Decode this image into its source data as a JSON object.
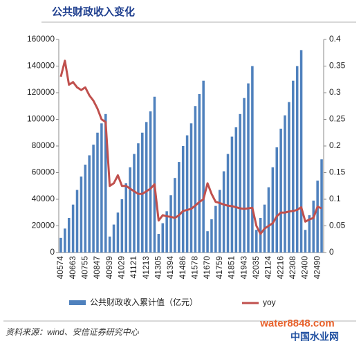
{
  "chart_data": {
    "type": "bar_line",
    "title": "公共财政收入变化",
    "source": "资料来源：wind、安信证券研究中心",
    "watermark": "water8848.com",
    "watermark_sub": "中国水业网",
    "categories": [
      40574,
      null,
      null,
      40663,
      null,
      null,
      40755,
      null,
      null,
      40847,
      null,
      null,
      40939,
      null,
      null,
      41029,
      null,
      null,
      41121,
      null,
      null,
      41213,
      null,
      null,
      41305,
      null,
      null,
      41394,
      null,
      null,
      41486,
      null,
      null,
      41578,
      null,
      null,
      41670,
      null,
      null,
      41759,
      null,
      null,
      41851,
      null,
      null,
      41943,
      null,
      null,
      42035,
      null,
      null,
      42124,
      null,
      null,
      42216,
      null,
      null,
      42308,
      null,
      null,
      42400,
      null,
      null,
      42490,
      null
    ],
    "series": [
      {
        "name": "公共财政收入累计值（亿元）",
        "type": "bar",
        "color": "#4f81bd",
        "axis": "y",
        "values": [
          11000,
          18000,
          26000,
          36000,
          47000,
          57000,
          66000,
          73000,
          81000,
          90000,
          97000,
          104000,
          12000,
          21000,
          30000,
          40000,
          52000,
          64000,
          74000,
          82000,
          90000,
          98000,
          106000,
          117000,
          14000,
          22000,
          31000,
          43000,
          56000,
          68000,
          80000,
          88000,
          97000,
          110000,
          119000,
          129000,
          16000,
          25000,
          35000,
          47000,
          61000,
          74000,
          87000,
          94000,
          104000,
          116000,
          127000,
          140000,
          17000,
          26000,
          36000,
          49000,
          64000,
          79000,
          93000,
          103000,
          113000,
          129000,
          140000,
          152000,
          17000,
          28000,
          39000,
          54000,
          70000
        ]
      },
      {
        "name": "yoy",
        "type": "line",
        "color": "#c0504d",
        "axis": "y2",
        "values": [
          0.33,
          0.36,
          0.315,
          0.32,
          0.31,
          0.305,
          0.31,
          0.295,
          0.285,
          0.27,
          0.25,
          0.245,
          0.125,
          0.13,
          0.145,
          0.125,
          0.125,
          0.12,
          0.115,
          0.11,
          0.11,
          0.115,
          0.12,
          0.128,
          0.06,
          0.07,
          0.068,
          0.067,
          0.065,
          0.07,
          0.078,
          0.08,
          0.082,
          0.088,
          0.095,
          0.1,
          0.13,
          0.11,
          0.095,
          0.093,
          0.09,
          0.088,
          0.087,
          0.085,
          0.083,
          0.082,
          0.083,
          0.084,
          0.05,
          0.035,
          0.045,
          0.05,
          0.055,
          0.068,
          0.075,
          0.075,
          0.077,
          0.078,
          0.08,
          0.085,
          0.058,
          0.062,
          0.065,
          0.086,
          0.083
        ]
      }
    ],
    "ylim": [
      0,
      160000
    ],
    "yticks": [
      0,
      20000,
      40000,
      60000,
      80000,
      100000,
      120000,
      140000,
      160000
    ],
    "y2lim": [
      0,
      0.4
    ],
    "y2ticks": [
      0,
      0.05,
      0.1,
      0.15,
      0.2,
      0.25,
      0.3,
      0.35,
      0.4
    ]
  }
}
